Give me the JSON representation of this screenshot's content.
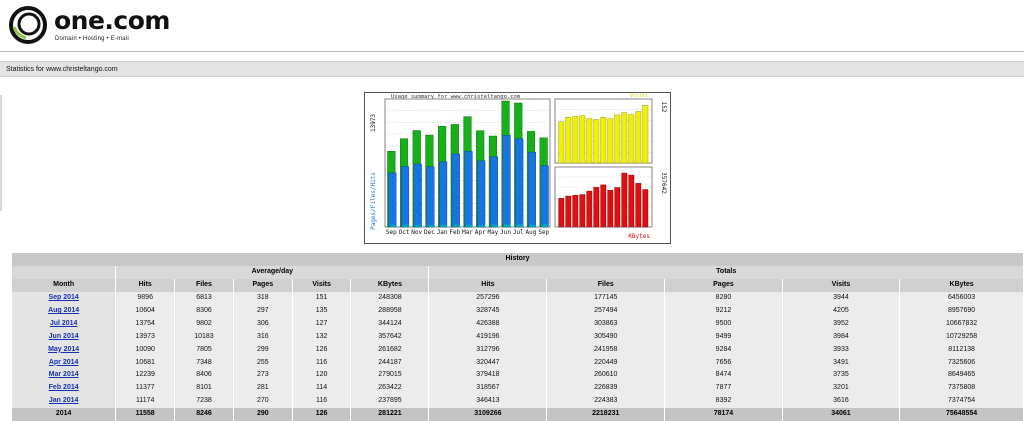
{
  "brand": {
    "name": "one.com",
    "tagline": "Domain • Hosting • E-mail"
  },
  "page_title": "Statistics for www.christeltango.com",
  "chart": {
    "title": "Usage summary for www.christeltango.com",
    "months": [
      "Sep",
      "Oct",
      "Nov",
      "Dec",
      "Jan",
      "Feb",
      "Mar",
      "Apr",
      "May",
      "Jun",
      "Jul",
      "Aug",
      "Sep"
    ],
    "left_axis_max_label": "13973",
    "left_axis_legend": "Pages/Files/Hits",
    "visits_axis_max_label": "152",
    "visits_legend": "Visits",
    "kbytes_axis_max_label": "357642",
    "kbytes_legend": "KBytes",
    "colors": {
      "hits": "#18b018",
      "files": "#1874e0",
      "pages": "#00a0c0",
      "visits": "#f0f000",
      "kbytes": "#e01010"
    }
  },
  "chart_data": {
    "type": "bar",
    "categories": [
      "Sep",
      "Oct",
      "Nov",
      "Dec",
      "Jan",
      "Feb",
      "Mar",
      "Apr",
      "May",
      "Jun",
      "Jul",
      "Aug",
      "Sep"
    ],
    "series": [
      {
        "name": "Hits",
        "values": [
          8400,
          9800,
          10700,
          10200,
          11174,
          11377,
          12239,
          10681,
          10090,
          13973,
          13754,
          10604,
          9896
        ]
      },
      {
        "name": "Files",
        "values": [
          6000,
          6700,
          7000,
          6700,
          7238,
          8101,
          8406,
          7348,
          7805,
          10183,
          9802,
          8306,
          6813
        ]
      },
      {
        "name": "Pages",
        "values": [
          250,
          260,
          270,
          265,
          270,
          281,
          273,
          255,
          299,
          316,
          306,
          297,
          318
        ]
      },
      {
        "name": "Visits",
        "values": [
          108,
          120,
          122,
          124,
          116,
          114,
          120,
          116,
          126,
          132,
          127,
          135,
          151
        ]
      },
      {
        "name": "KBytes",
        "values": [
          190000,
          205000,
          210000,
          215000,
          237895,
          263422,
          279015,
          244187,
          261682,
          357642,
          344124,
          288958,
          248308
        ]
      }
    ],
    "ylim_left": [
      0,
      13973
    ],
    "ylim_visits": [
      0,
      152
    ],
    "ylim_kbytes": [
      0,
      357642
    ]
  },
  "history": {
    "title": "History",
    "group_average": "Average/day",
    "group_totals": "Totals",
    "columns": [
      "Month",
      "Hits",
      "Files",
      "Pages",
      "Visits",
      "KBytes",
      "Hits",
      "Files",
      "Pages",
      "Visits",
      "KBytes"
    ],
    "rows": [
      [
        "Sep 2014",
        "9896",
        "6813",
        "318",
        "151",
        "248308",
        "257296",
        "177145",
        "8280",
        "3944",
        "6456003"
      ],
      [
        "Aug 2014",
        "10604",
        "8306",
        "297",
        "135",
        "288958",
        "328745",
        "257494",
        "9212",
        "4205",
        "8957690"
      ],
      [
        "Jul 2014",
        "13754",
        "9802",
        "306",
        "127",
        "344124",
        "426388",
        "303863",
        "9500",
        "3952",
        "10667832"
      ],
      [
        "Jun 2014",
        "13973",
        "10183",
        "316",
        "132",
        "357642",
        "419196",
        "305490",
        "9499",
        "3984",
        "10729258"
      ],
      [
        "May 2014",
        "10090",
        "7805",
        "299",
        "126",
        "261682",
        "312796",
        "241958",
        "9284",
        "3933",
        "8112138"
      ],
      [
        "Apr 2014",
        "10681",
        "7348",
        "255",
        "116",
        "244187",
        "320447",
        "220449",
        "7656",
        "3491",
        "7325606"
      ],
      [
        "Mar 2014",
        "12239",
        "8406",
        "273",
        "120",
        "279015",
        "379418",
        "260610",
        "8474",
        "3735",
        "8649465"
      ],
      [
        "Feb 2014",
        "11377",
        "8101",
        "281",
        "114",
        "263422",
        "318567",
        "226839",
        "7877",
        "3201",
        "7375808"
      ],
      [
        "Jan 2014",
        "11174",
        "7238",
        "270",
        "116",
        "237895",
        "346413",
        "224383",
        "8392",
        "3616",
        "7374754"
      ]
    ],
    "total": [
      "2014",
      "11558",
      "8246",
      "290",
      "126",
      "281221",
      "3109266",
      "2218231",
      "78174",
      "34061",
      "75648554"
    ]
  }
}
